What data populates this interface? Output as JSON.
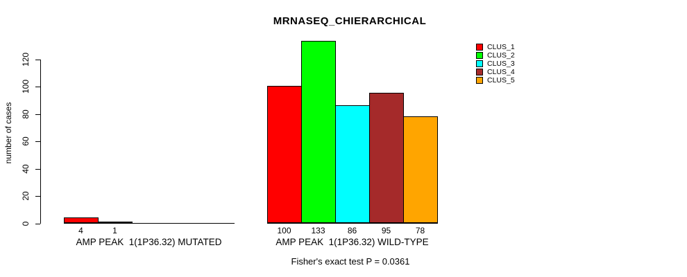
{
  "chart_data": {
    "type": "bar",
    "title": "MRNASEQ_CHIERARCHICAL",
    "ylabel": "number of cases",
    "xlabel": "",
    "ylim": [
      0,
      120
    ],
    "y_ticks": [
      0,
      20,
      40,
      60,
      80,
      100,
      120
    ],
    "grid": false,
    "legend_position": "top-right",
    "series": [
      "CLUS_1",
      "CLUS_2",
      "CLUS_3",
      "CLUS_4",
      "CLUS_5"
    ],
    "series_colors": [
      "#FF0000",
      "#00FF00",
      "#00FFFF",
      "#A52A2A",
      "#FFA500"
    ],
    "groups": [
      {
        "label": "AMP PEAK  1(1P36.32) MUTATED",
        "values": [
          4,
          1,
          0,
          0,
          0
        ],
        "value_labels": [
          "4",
          "1",
          "",
          "",
          ""
        ]
      },
      {
        "label": "AMP PEAK  1(1P36.32) WILD-TYPE",
        "values": [
          100,
          133,
          86,
          95,
          78
        ],
        "value_labels": [
          "100",
          "133",
          "86",
          "95",
          "78"
        ]
      }
    ],
    "legend": [
      {
        "label": "CLUS_1",
        "color": "#FF0000"
      },
      {
        "label": "CLUS_2",
        "color": "#00FF00"
      },
      {
        "label": "CLUS_3",
        "color": "#00FFFF"
      },
      {
        "label": "CLUS_4",
        "color": "#A52A2A"
      },
      {
        "label": "CLUS_5",
        "color": "#FFA500"
      }
    ],
    "footnote": "Fisher's exact test P = 0.0361"
  }
}
